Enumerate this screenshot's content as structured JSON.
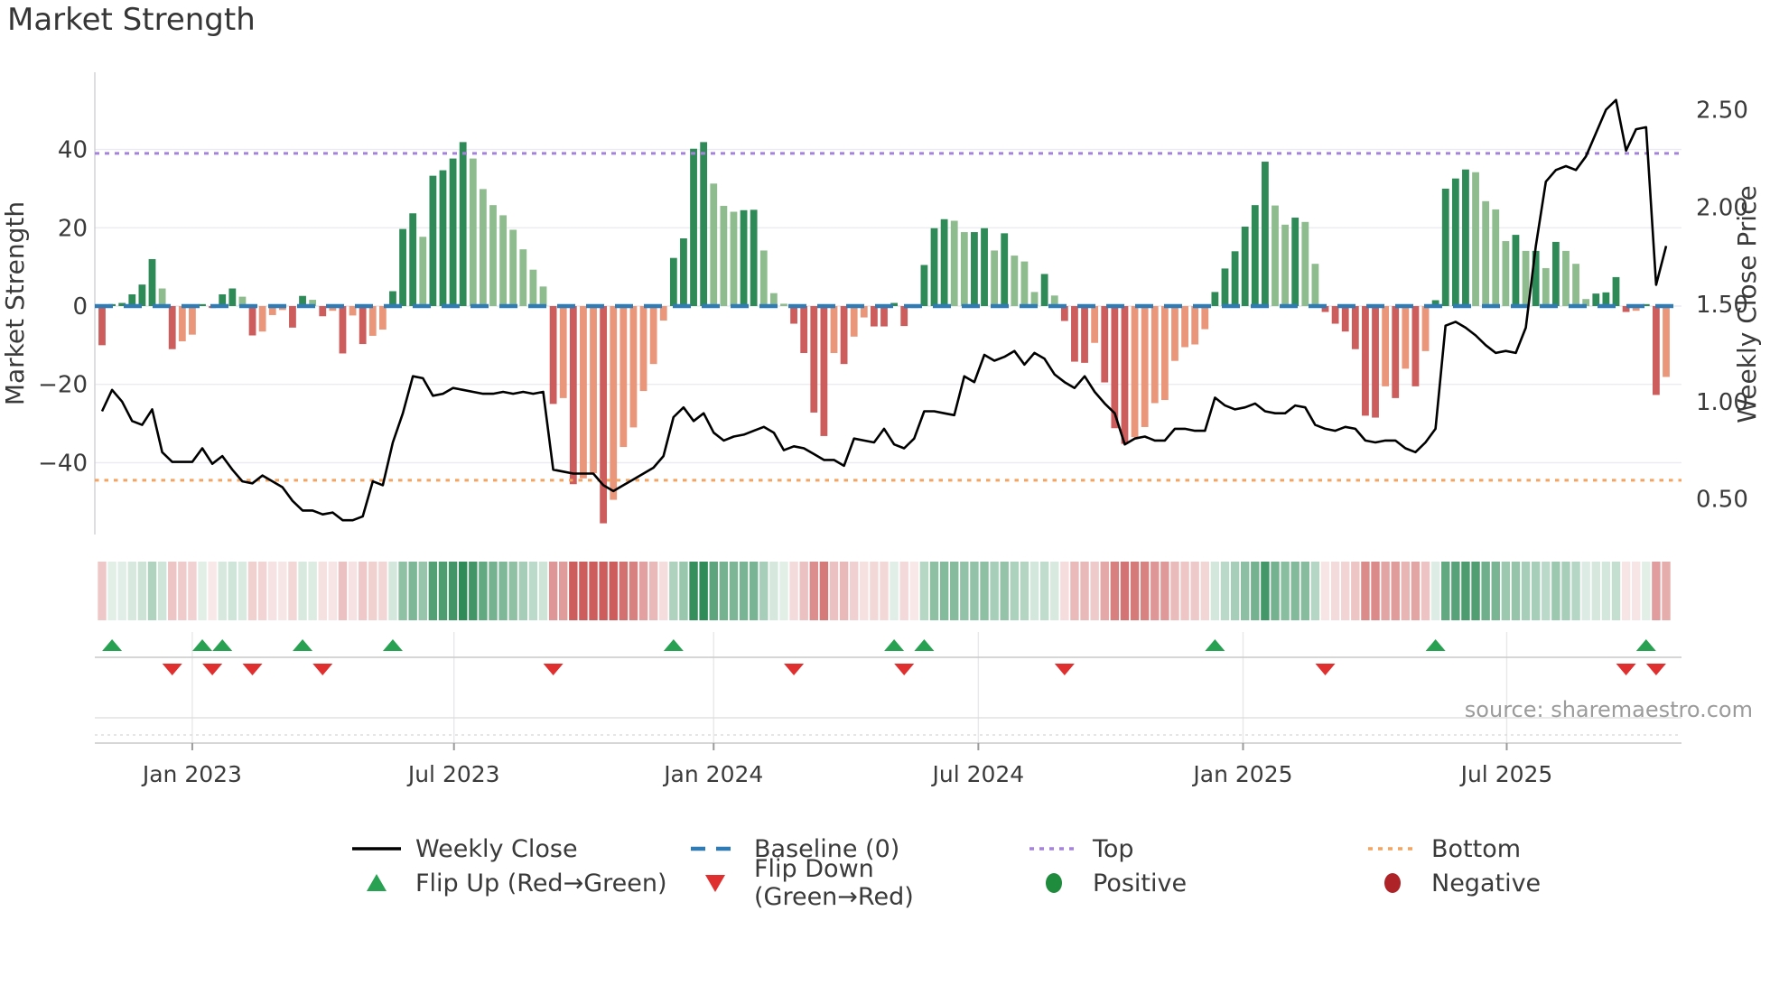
{
  "title": "Market Strength",
  "source": "source: sharemaestro.com",
  "colors": {
    "bar_pos_strong": "#2E8B57",
    "bar_pos_weak": "#8FBC8F",
    "bar_neg_strong": "#CD5C5C",
    "bar_neg_weak": "#E9967A",
    "price_line": "#000000",
    "baseline": "#2f7bb5",
    "top_line": "#a583db",
    "bottom_line": "#f4a460",
    "flip_up": "#28a152",
    "flip_down": "#e02f2f",
    "positive_dot": "#1f8b3d",
    "negative_dot": "#ae2327",
    "grid": "#ebebf1",
    "axis_text": "#3a3a3a",
    "muted_line": "#cccccc"
  },
  "left_axis": {
    "label": "Market Strength",
    "ticks": [
      "40",
      "20",
      "0",
      "−20",
      "−40"
    ],
    "tick_values": [
      40,
      20,
      0,
      -20,
      -40
    ]
  },
  "right_axis": {
    "label": "Weekly Close Price",
    "ticks": [
      "2.50",
      "2.00",
      "1.50",
      "1.00",
      "0.50"
    ],
    "tick_values": [
      2.5,
      2.0,
      1.5,
      1.0,
      0.5
    ]
  },
  "legend": {
    "weekly_close": "Weekly Close",
    "baseline": "Baseline (0)",
    "top": "Top",
    "bottom": "Bottom",
    "flip_up": "Flip Up (Red→Green)",
    "flip_down": "Flip Down (Green→Red)",
    "positive": "Positive",
    "negative": "Negative"
  },
  "chart_data": {
    "type": "bar",
    "title": "Market Strength",
    "ylabel": "Market Strength",
    "y2label": "Weekly Close Price",
    "ylim": [
      -58,
      60
    ],
    "y2lim": [
      0.31,
      2.68
    ],
    "grid": true,
    "legend_position": "bottom",
    "reference_lines": {
      "baseline": 0,
      "top": 39.0,
      "bottom": -44.5
    },
    "x_ticks": [
      {
        "label": "Jan 2023",
        "week": 9.0
      },
      {
        "label": "Jul 2023",
        "week": 35.1
      },
      {
        "label": "Jan 2024",
        "week": 61.0
      },
      {
        "label": "Jul 2024",
        "week": 87.4
      },
      {
        "label": "Jan 2025",
        "week": 113.8
      },
      {
        "label": "Jul 2025",
        "week": 140.1
      }
    ],
    "series": [
      {
        "name": "Market Strength (weekly bars)",
        "values": [
          -10,
          0.5,
          0.8,
          3,
          5.5,
          12,
          4.5,
          -11,
          -9,
          -7.3,
          0.5,
          -0.5,
          3.0,
          4.5,
          2.4,
          -7.5,
          -6.5,
          -2.3,
          -1.0,
          -5.5,
          2.6,
          1.6,
          -2.6,
          -1.2,
          -12.1,
          -2.4,
          -9.7,
          -7.6,
          -6.0,
          3.8,
          19.7,
          23.7,
          17.7,
          33.3,
          34.7,
          37.7,
          41.9,
          37.7,
          29.9,
          25.8,
          23.2,
          19.5,
          14.5,
          9.3,
          5.0,
          -25.0,
          -23.5,
          -45.5,
          -44.0,
          -42.7,
          -55.5,
          -49.5,
          -36.0,
          -31.0,
          -21.7,
          -14.8,
          -3.7,
          12.3,
          17.3,
          40.2,
          41.9,
          31.3,
          25.6,
          24.1,
          24.5,
          24.6,
          14.2,
          3.3,
          0.6,
          -4.5,
          -12.0,
          -27.2,
          -33.2,
          -12.0,
          -14.8,
          -7.8,
          -2.9,
          -5.2,
          -5.2,
          0.8,
          -5.1,
          -0.5,
          10.5,
          19.9,
          22.2,
          21.8,
          18.9,
          18.9,
          19.9,
          14.2,
          18.6,
          12.9,
          11.4,
          3.6,
          8.2,
          2.7,
          -3.8,
          -14.2,
          -14.5,
          -9.4,
          -19.5,
          -31.2,
          -35.2,
          -33.5,
          -30.9,
          -24.8,
          -24.0,
          -14.0,
          -10.5,
          -9.8,
          -5.9,
          3.6,
          9.6,
          14.0,
          20.3,
          25.8,
          36.9,
          25.7,
          20.8,
          22.6,
          21.5,
          10.8,
          -1.5,
          -4.5,
          -6.5,
          -11.0,
          -28.0,
          -28.5,
          -20.5,
          -23.5,
          -16.0,
          -20.5,
          -11.5,
          1.5,
          30.0,
          32.6,
          34.9,
          34.2,
          26.8,
          24.7,
          16.6,
          18.2,
          14.1,
          14.1,
          9.7,
          16.4,
          14.1,
          10.8,
          1.8,
          3.2,
          3.5,
          7.4,
          -1.5,
          -1.2,
          0.5,
          -22.7,
          -18.1
        ]
      },
      {
        "name": "Weekly Close",
        "values": [
          0.95,
          1.06,
          1.0,
          0.9,
          0.88,
          0.96,
          0.74,
          0.69,
          0.69,
          0.69,
          0.76,
          0.68,
          0.72,
          0.65,
          0.59,
          0.58,
          0.62,
          0.59,
          0.56,
          0.49,
          0.44,
          0.44,
          0.42,
          0.43,
          0.39,
          0.39,
          0.41,
          0.59,
          0.57,
          0.79,
          0.94,
          1.13,
          1.12,
          1.03,
          1.04,
          1.07,
          1.06,
          1.05,
          1.04,
          1.04,
          1.05,
          1.04,
          1.05,
          1.04,
          1.05,
          0.65,
          0.64,
          0.63,
          0.63,
          0.63,
          0.57,
          0.54,
          0.57,
          0.6,
          0.63,
          0.66,
          0.72,
          0.92,
          0.97,
          0.9,
          0.94,
          0.84,
          0.8,
          0.82,
          0.83,
          0.85,
          0.87,
          0.84,
          0.75,
          0.77,
          0.76,
          0.73,
          0.7,
          0.7,
          0.67,
          0.81,
          0.8,
          0.79,
          0.86,
          0.78,
          0.76,
          0.81,
          0.95,
          0.95,
          0.94,
          0.93,
          1.13,
          1.1,
          1.24,
          1.21,
          1.23,
          1.26,
          1.19,
          1.25,
          1.22,
          1.14,
          1.1,
          1.07,
          1.13,
          1.05,
          0.99,
          0.94,
          0.78,
          0.81,
          0.82,
          0.8,
          0.8,
          0.86,
          0.86,
          0.85,
          0.85,
          1.02,
          0.98,
          0.96,
          0.97,
          0.99,
          0.95,
          0.94,
          0.94,
          0.98,
          0.97,
          0.88,
          0.86,
          0.85,
          0.87,
          0.86,
          0.8,
          0.79,
          0.8,
          0.8,
          0.76,
          0.74,
          0.79,
          0.86,
          1.39,
          1.41,
          1.38,
          1.34,
          1.29,
          1.25,
          1.26,
          1.25,
          1.38,
          1.8,
          2.13,
          2.19,
          2.21,
          2.19,
          2.26,
          2.38,
          2.5,
          2.55,
          2.29,
          2.4,
          2.41,
          1.6,
          1.8
        ]
      }
    ],
    "marker_rule": "Flip Up where strength crosses negative to positive; Flip Down where it crosses positive to negative",
    "heatmap": "weekly strip shaded green for positive strength, red for negative, intensity proportional to |value|"
  }
}
